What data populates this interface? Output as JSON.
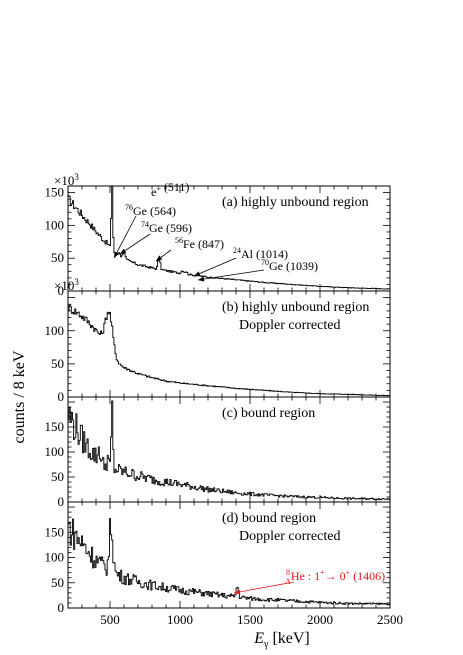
{
  "chart_data": {
    "type": "line",
    "xlabel": "E",
    "xlabel_sub": "γ",
    "xlabel_unit": " [keV]",
    "ylabel": "counts / 8 keV",
    "xlim": [
      200,
      2500
    ],
    "x_ticks": [
      "500",
      "1000",
      "1500",
      "2000",
      "2500"
    ],
    "panels": [
      {
        "title_lines": [
          "(a) highly unbound region"
        ],
        "multiplier": "×10",
        "multiplier_exp": "3",
        "ylim": [
          0,
          160
        ],
        "y_ticks": [
          "0",
          "50",
          "100",
          "150"
        ],
        "annotations": [
          {
            "iso": "",
            "label": "e",
            "label_sup": "+",
            "energy": " (511)",
            "x": 511
          },
          {
            "iso": "76",
            "label": "Ge",
            "energy": " (564)",
            "x": 564
          },
          {
            "iso": "74",
            "label": "Ge",
            "energy": " (596)",
            "x": 596
          },
          {
            "iso": "56",
            "label": "Fe",
            "energy": " (847)",
            "x": 847
          },
          {
            "iso": "24",
            "label": "Al",
            "energy": " (1014)",
            "x": 1014
          },
          {
            "iso": "70",
            "label": "Ge",
            "energy": " (1039)",
            "x": 1039
          }
        ],
        "series": {
          "continuum": [
            [
              200,
              140
            ],
            [
              250,
              128
            ],
            [
              300,
              115
            ],
            [
              350,
              103
            ],
            [
              400,
              90
            ],
            [
              450,
              78
            ],
            [
              480,
              72
            ],
            [
              500,
              66
            ],
            [
              530,
              58
            ],
            [
              560,
              52
            ],
            [
              600,
              48
            ],
            [
              700,
              40
            ],
            [
              800,
              35
            ],
            [
              900,
              31
            ],
            [
              1000,
              27
            ],
            [
              1100,
              24
            ],
            [
              1200,
              21
            ],
            [
              1400,
              17
            ],
            [
              1600,
              13
            ],
            [
              1800,
              10
            ],
            [
              2000,
              7
            ],
            [
              2200,
              5
            ],
            [
              2500,
              3
            ]
          ],
          "peaks": [
            {
              "x": 511,
              "h": 110,
              "w": 5
            },
            {
              "x": 564,
              "h": 8,
              "w": 8
            },
            {
              "x": 596,
              "h": 12,
              "w": 8
            },
            {
              "x": 847,
              "h": 16,
              "w": 8
            },
            {
              "x": 1014,
              "h": 5,
              "w": 8
            },
            {
              "x": 1039,
              "h": 4,
              "w": 8
            }
          ]
        }
      },
      {
        "title_lines": [
          "(b) highly unbound region",
          "Doppler corrected"
        ],
        "multiplier": "×10",
        "multiplier_exp": "3",
        "ylim": [
          0,
          160
        ],
        "y_ticks": [
          "0",
          "50",
          "100"
        ],
        "annotations": [],
        "series": {
          "continuum": [
            [
              200,
              135
            ],
            [
              260,
              128
            ],
            [
              320,
              118
            ],
            [
              380,
              105
            ],
            [
              430,
              92
            ],
            [
              460,
              85
            ],
            [
              500,
              70
            ],
            [
              540,
              54
            ],
            [
              600,
              44
            ],
            [
              700,
              35
            ],
            [
              800,
              29
            ],
            [
              900,
              24
            ],
            [
              1000,
              21
            ],
            [
              1200,
              17
            ],
            [
              1400,
              13
            ],
            [
              1600,
              10
            ],
            [
              1800,
              7
            ],
            [
              2000,
              5
            ],
            [
              2200,
              4
            ],
            [
              2500,
              2
            ]
          ],
          "peaks": [
            {
              "x": 490,
              "h": 55,
              "w": 25
            }
          ]
        }
      },
      {
        "title_lines": [
          "(c) bound region"
        ],
        "multiplier": "",
        "multiplier_exp": "",
        "ylim": [
          0,
          210
        ],
        "y_ticks": [
          "0",
          "50",
          "100",
          "150"
        ],
        "annotations": [],
        "series": {
          "continuum": [
            [
              200,
              175
            ],
            [
              250,
              150
            ],
            [
              300,
              125
            ],
            [
              350,
              105
            ],
            [
              400,
              90
            ],
            [
              450,
              75
            ],
            [
              500,
              68
            ],
            [
              600,
              60
            ],
            [
              700,
              52
            ],
            [
              800,
              45
            ],
            [
              900,
              40
            ],
            [
              1000,
              35
            ],
            [
              1100,
              30
            ],
            [
              1200,
              25
            ],
            [
              1400,
              18
            ],
            [
              1600,
              14
            ],
            [
              1800,
              11
            ],
            [
              2000,
              9
            ],
            [
              2200,
              7
            ],
            [
              2500,
              6
            ]
          ],
          "peaks": [
            {
              "x": 511,
              "h": 130,
              "w": 5
            },
            {
              "x": 480,
              "h": 20,
              "w": 6
            },
            {
              "x": 420,
              "h": 25,
              "w": 8
            }
          ]
        }
      },
      {
        "title_lines": [
          "(d) bound region",
          "Doppler corrected"
        ],
        "multiplier": "",
        "multiplier_exp": "",
        "ylim": [
          0,
          210
        ],
        "y_ticks": [
          "0",
          "50",
          "100",
          "150"
        ],
        "annotations": [
          {
            "red": true,
            "iso_sup": "8",
            "iso_sub": "Λ",
            "label": "He : 1",
            "label_sup": "+",
            "arrow": "→",
            "label2": " 0",
            "label2_sup": "+",
            "energy": " (1406)",
            "x": 1406
          }
        ],
        "series": {
          "continuum": [
            [
              200,
              160
            ],
            [
              260,
              140
            ],
            [
              320,
              120
            ],
            [
              380,
              100
            ],
            [
              440,
              85
            ],
            [
              480,
              78
            ],
            [
              520,
              70
            ],
            [
              600,
              60
            ],
            [
              700,
              52
            ],
            [
              800,
              45
            ],
            [
              900,
              40
            ],
            [
              1000,
              35
            ],
            [
              1100,
              32
            ],
            [
              1200,
              28
            ],
            [
              1300,
              25
            ],
            [
              1400,
              22
            ],
            [
              1500,
              19
            ],
            [
              1600,
              17
            ],
            [
              1800,
              14
            ],
            [
              2000,
              11
            ],
            [
              2200,
              9
            ],
            [
              2500,
              8
            ]
          ],
          "peaks": [
            {
              "x": 505,
              "h": 95,
              "w": 12
            },
            {
              "x": 1406,
              "h": 22,
              "w": 8
            }
          ]
        }
      }
    ]
  }
}
